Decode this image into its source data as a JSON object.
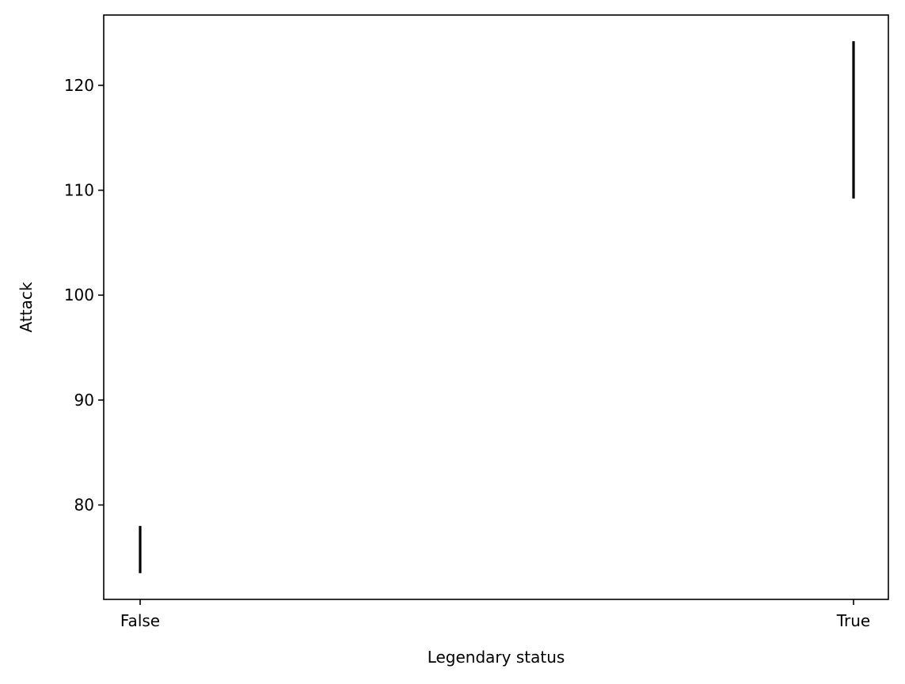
{
  "chart_data": {
    "type": "errorbar",
    "title": "",
    "xlabel": "Legendary status",
    "ylabel": "Attack",
    "categories": [
      "False",
      "True"
    ],
    "intervals": [
      {
        "category": "False",
        "low": 73.5,
        "high": 78.0
      },
      {
        "category": "True",
        "low": 109.2,
        "high": 124.2
      }
    ],
    "ylim": [
      71,
      126.7
    ],
    "yticks": [
      80,
      90,
      100,
      110,
      120
    ],
    "grid": false,
    "legend": "none",
    "colors": {
      "bar": "#000000",
      "frame": "#000000",
      "background": "#ffffff"
    }
  }
}
